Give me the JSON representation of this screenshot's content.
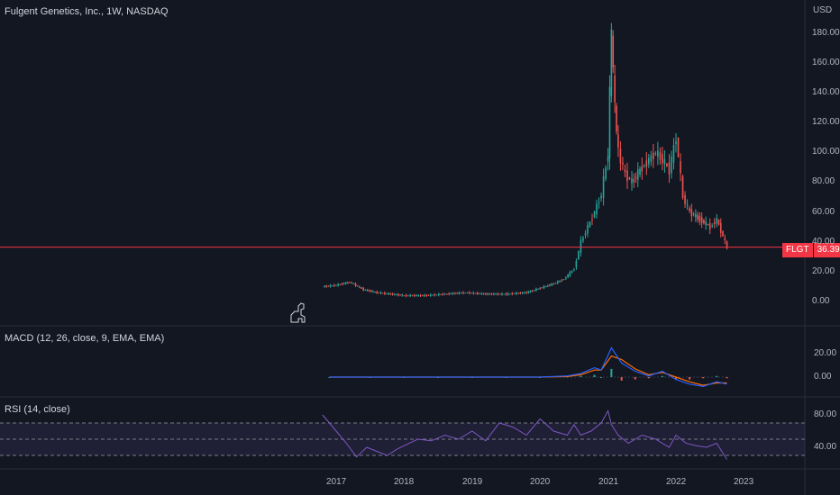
{
  "header": {
    "title": "Fulgent Genetics, Inc., 1W, NASDAQ",
    "currency": "USD"
  },
  "price_pane": {
    "ticker": "FLGT",
    "last_price": "36.39",
    "y_ticks": [
      "180.00",
      "160.00",
      "140.00",
      "120.00",
      "100.00",
      "80.00",
      "60.00",
      "40.00",
      "20.00",
      "0.00"
    ]
  },
  "macd_pane": {
    "label": "MACD (12, 26, close, 9, EMA, EMA)",
    "y_ticks": [
      "20.00",
      "0.00"
    ]
  },
  "rsi_pane": {
    "label": "RSI (14, close)",
    "y_ticks": [
      "80.00",
      "40.00"
    ]
  },
  "time_axis": {
    "ticks": [
      "2017",
      "2018",
      "2019",
      "2020",
      "2021",
      "2022",
      "2023"
    ]
  },
  "colors": {
    "background": "#131722",
    "up": "#26a69a",
    "down": "#ef5350",
    "macd_line": "#2962ff",
    "signal_line": "#ff6d00",
    "rsi_line": "#7e57c2",
    "price_line": "#f23645"
  },
  "chart_data": {
    "type": "line",
    "title": "Fulgent Genetics, Inc., 1W, NASDAQ",
    "x_ticks": [
      "2017",
      "2018",
      "2019",
      "2020",
      "2021",
      "2022",
      "2023"
    ],
    "price_series": {
      "name": "FLGT",
      "x": [
        2016.8,
        2017.0,
        2017.2,
        2017.4,
        2017.6,
        2017.8,
        2018.0,
        2018.3,
        2018.6,
        2018.9,
        2019.2,
        2019.5,
        2019.8,
        2020.0,
        2020.2,
        2020.35,
        2020.5,
        2020.6,
        2020.7,
        2020.8,
        2020.9,
        2021.0,
        2021.05,
        2021.1,
        2021.15,
        2021.25,
        2021.35,
        2021.5,
        2021.6,
        2021.7,
        2021.8,
        2021.9,
        2022.0,
        2022.1,
        2022.2,
        2022.35,
        2022.5,
        2022.6,
        2022.75
      ],
      "y": [
        10,
        11,
        13,
        8,
        6,
        5,
        4,
        4,
        5,
        6,
        5,
        5,
        6,
        9,
        12,
        15,
        22,
        40,
        50,
        60,
        72,
        100,
        180,
        130,
        100,
        85,
        80,
        90,
        95,
        100,
        95,
        88,
        110,
        70,
        60,
        55,
        50,
        55,
        36
      ],
      "ylim": [
        0,
        190
      ]
    },
    "macd_series": {
      "name": "MACD (12, 26, close, 9, EMA, EMA)",
      "x": [
        2016.9,
        2017.5,
        2018.0,
        2018.5,
        2019.0,
        2019.5,
        2020.0,
        2020.4,
        2020.6,
        2020.8,
        2020.9,
        2021.05,
        2021.2,
        2021.4,
        2021.6,
        2021.8,
        2022.0,
        2022.2,
        2022.4,
        2022.6,
        2022.75
      ],
      "macd": [
        0,
        0,
        0,
        0,
        0,
        0,
        0,
        1,
        3,
        8,
        6,
        25,
        12,
        5,
        1,
        5,
        -2,
        -6,
        -8,
        -4,
        -6
      ],
      "signal": [
        0,
        0,
        0,
        0,
        0,
        0,
        0,
        0.5,
        2,
        6,
        6,
        18,
        15,
        7,
        2,
        4,
        0,
        -4,
        -7,
        -5,
        -5
      ],
      "ylim": [
        -10,
        30
      ]
    },
    "rsi_series": {
      "name": "RSI (14, close)",
      "x": [
        2016.8,
        2016.9,
        2017.0,
        2017.15,
        2017.3,
        2017.45,
        2017.6,
        2017.75,
        2017.9,
        2018.0,
        2018.2,
        2018.4,
        2018.6,
        2018.8,
        2019.0,
        2019.2,
        2019.4,
        2019.6,
        2019.8,
        2020.0,
        2020.2,
        2020.4,
        2020.5,
        2020.6,
        2020.75,
        2020.9,
        2021.0,
        2021.05,
        2021.15,
        2021.3,
        2021.5,
        2021.7,
        2021.9,
        2022.0,
        2022.15,
        2022.3,
        2022.45,
        2022.6,
        2022.75
      ],
      "y": [
        80,
        70,
        60,
        45,
        28,
        40,
        35,
        30,
        38,
        42,
        50,
        48,
        55,
        50,
        60,
        48,
        70,
        65,
        55,
        75,
        60,
        55,
        68,
        55,
        60,
        70,
        85,
        68,
        55,
        45,
        55,
        50,
        40,
        55,
        45,
        42,
        40,
        45,
        25
      ],
      "overbought": 70,
      "oversold": 30,
      "ylim": [
        20,
        90
      ]
    }
  }
}
